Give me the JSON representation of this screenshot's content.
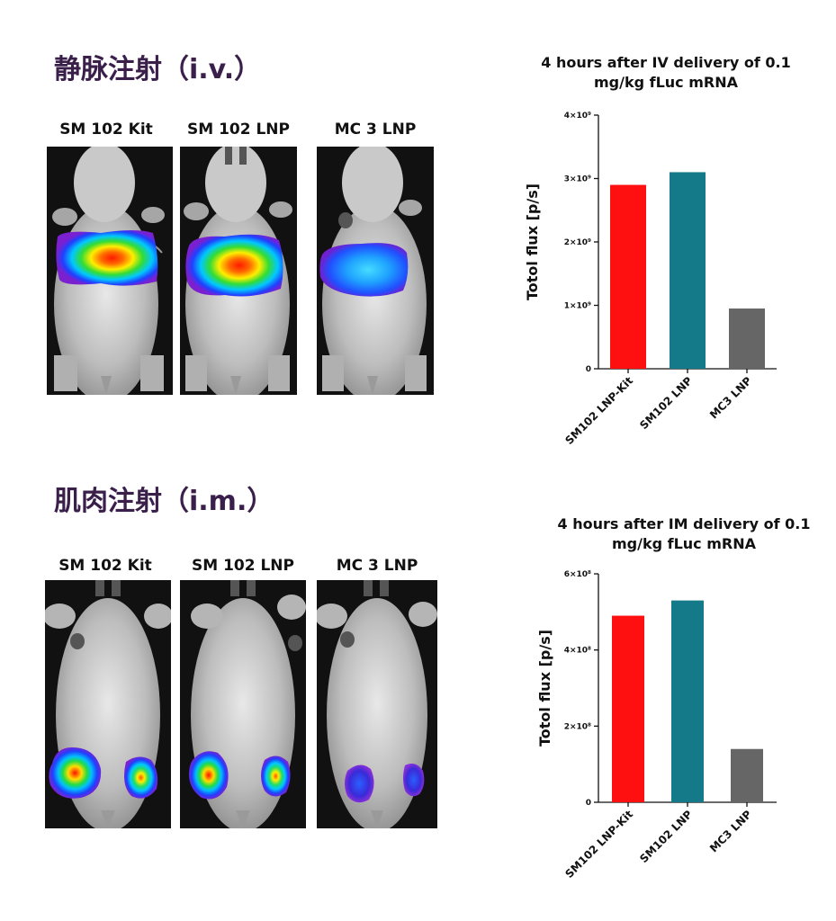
{
  "sections": {
    "iv": {
      "title": "静脉注射（i.v.）",
      "panel_labels": [
        "SM 102 Kit",
        "SM 102 LNP",
        "MC 3 LNP"
      ]
    },
    "im": {
      "title": "肌肉注射（i.m.）",
      "panel_labels": [
        "SM 102 Kit",
        "SM 102 LNP",
        "MC 3 LNP"
      ]
    }
  },
  "colors": {
    "title": "#3a1f4a",
    "bar_red": "#ff1010",
    "bar_teal": "#147a8a",
    "bar_gray": "#666666"
  },
  "chart_data": [
    {
      "type": "bar",
      "title_lines": [
        "4 hours after IV delivery of  0.1",
        "mg/kg fLuc mRNA"
      ],
      "ylabel": "Totol flux [p/s]",
      "categories": [
        "SM102 LNP-Kit",
        "SM102 LNP",
        "MC3 LNP"
      ],
      "values": [
        2900000000,
        3100000000,
        950000000
      ],
      "colors": [
        "#ff1010",
        "#147a8a",
        "#666666"
      ],
      "ylim": [
        0,
        4000000000
      ],
      "yticks": [
        0,
        1000000000,
        2000000000,
        3000000000,
        4000000000
      ],
      "ytick_labels": [
        "0",
        "1×10⁹",
        "2×10⁹",
        "3×10⁹",
        "4×10⁹"
      ],
      "grid": false
    },
    {
      "type": "bar",
      "title_lines": [
        "4 hours after IM delivery of  0.1",
        "mg/kg fLuc mRNA"
      ],
      "ylabel": "Totol flux [p/s]",
      "categories": [
        "SM102 LNP-Kit",
        "SM102 LNP",
        "MC3 LNP"
      ],
      "values": [
        490000000,
        530000000,
        140000000
      ],
      "colors": [
        "#ff1010",
        "#147a8a",
        "#666666"
      ],
      "ylim": [
        0,
        600000000
      ],
      "yticks": [
        0,
        200000000,
        400000000,
        600000000
      ],
      "ytick_labels": [
        "0",
        "2×10⁸",
        "4×10⁸",
        "6×10⁸"
      ],
      "grid": false
    }
  ]
}
